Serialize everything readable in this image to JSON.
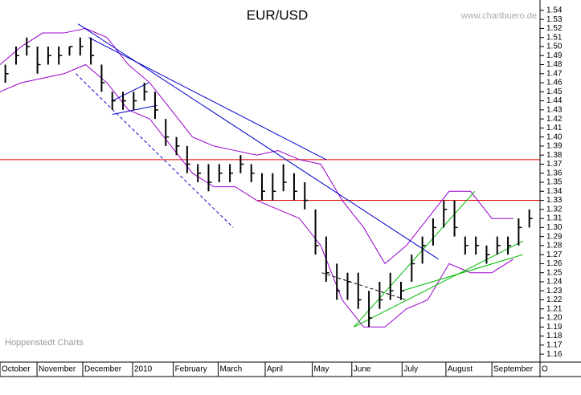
{
  "chart_data": {
    "type": "ohlc",
    "title": "EUR/USD",
    "source": "www.chartbuero.de",
    "footer": "Hoppenstedt Charts",
    "x": [
      0.5,
      1.5,
      2.5,
      3.5,
      4.5,
      5.5,
      6.5,
      7.5,
      8.5,
      9.5,
      10.5,
      11.5,
      12.5,
      13.5,
      14.5,
      15.5,
      16.5,
      17.5,
      18.5,
      19.5,
      20.5,
      21.5,
      22.5,
      23.5,
      24.5,
      25.5,
      26.5,
      27.5,
      28.5,
      29.5,
      30.5,
      31.5,
      32.5,
      33.5,
      34.5,
      35.5,
      36.5,
      37.5,
      38.5,
      39.5,
      40.5,
      41.5,
      42.5,
      43.5,
      44.5,
      45.5,
      46.5,
      47.5,
      48.5,
      49.5
    ],
    "high": [
      1.48,
      1.5,
      1.51,
      1.5,
      1.5,
      1.5,
      1.5,
      1.51,
      1.51,
      1.48,
      1.45,
      1.45,
      1.45,
      1.46,
      1.45,
      1.42,
      1.4,
      1.39,
      1.37,
      1.37,
      1.37,
      1.37,
      1.38,
      1.37,
      1.36,
      1.36,
      1.37,
      1.36,
      1.35,
      1.32,
      1.29,
      1.26,
      1.25,
      1.25,
      1.23,
      1.24,
      1.25,
      1.24,
      1.27,
      1.29,
      1.31,
      1.33,
      1.33,
      1.29,
      1.29,
      1.28,
      1.29,
      1.29,
      1.31,
      1.32
    ],
    "low": [
      1.46,
      1.48,
      1.49,
      1.47,
      1.48,
      1.48,
      1.49,
      1.49,
      1.48,
      1.45,
      1.43,
      1.43,
      1.43,
      1.44,
      1.42,
      1.39,
      1.38,
      1.36,
      1.35,
      1.34,
      1.35,
      1.35,
      1.36,
      1.35,
      1.33,
      1.33,
      1.34,
      1.33,
      1.32,
      1.27,
      1.24,
      1.22,
      1.22,
      1.21,
      1.19,
      1.21,
      1.22,
      1.22,
      1.24,
      1.26,
      1.28,
      1.3,
      1.29,
      1.27,
      1.27,
      1.26,
      1.27,
      1.27,
      1.28,
      1.3
    ],
    "close": [
      1.47,
      1.49,
      1.5,
      1.48,
      1.49,
      1.49,
      1.5,
      1.5,
      1.49,
      1.46,
      1.44,
      1.44,
      1.44,
      1.45,
      1.43,
      1.4,
      1.39,
      1.37,
      1.36,
      1.35,
      1.36,
      1.36,
      1.37,
      1.36,
      1.34,
      1.34,
      1.35,
      1.34,
      1.33,
      1.28,
      1.25,
      1.23,
      1.24,
      1.22,
      1.2,
      1.22,
      1.23,
      1.23,
      1.26,
      1.28,
      1.3,
      1.32,
      1.3,
      1.28,
      1.28,
      1.27,
      1.28,
      1.28,
      1.3,
      1.31
    ],
    "color": "#000000",
    "bands": {
      "color": "#9900cc",
      "x": [
        0,
        2,
        4,
        6,
        8,
        10,
        12,
        14,
        16,
        18,
        20,
        22,
        24,
        26,
        28,
        30,
        32,
        34,
        36,
        38,
        40,
        42,
        44,
        46,
        48
      ],
      "upper": [
        1.48,
        1.5,
        1.515,
        1.515,
        1.52,
        1.51,
        1.48,
        1.46,
        1.43,
        1.4,
        1.39,
        1.385,
        1.38,
        1.385,
        1.375,
        1.37,
        1.33,
        1.3,
        1.26,
        1.28,
        1.31,
        1.34,
        1.34,
        1.31,
        1.31
      ],
      "lower": [
        1.45,
        1.46,
        1.465,
        1.47,
        1.48,
        1.46,
        1.43,
        1.42,
        1.39,
        1.36,
        1.345,
        1.345,
        1.33,
        1.32,
        1.31,
        1.28,
        1.22,
        1.19,
        1.19,
        1.21,
        1.22,
        1.26,
        1.25,
        1.25,
        1.265
      ]
    },
    "trendlines": [
      {
        "color": "#0000cc",
        "dashed": false,
        "points": [
          [
            7.3,
            1.525
          ],
          [
            41.0,
            1.265
          ]
        ]
      },
      {
        "color": "#0000cc",
        "dashed": false,
        "points": [
          [
            8.3,
            1.51
          ],
          [
            30.5,
            1.375
          ]
        ]
      },
      {
        "color": "#0000cc",
        "dashed": false,
        "points": [
          [
            10.5,
            1.44
          ],
          [
            13.9,
            1.46
          ]
        ]
      },
      {
        "color": "#0000cc",
        "dashed": false,
        "points": [
          [
            10.5,
            1.425
          ],
          [
            14.7,
            1.435
          ]
        ]
      },
      {
        "color": "#0000cc",
        "dashed": true,
        "points": [
          [
            7.1,
            1.47
          ],
          [
            21.8,
            1.3
          ]
        ]
      },
      {
        "color": "#000000",
        "dashed": true,
        "points": [
          [
            30.1,
            1.25
          ],
          [
            38.0,
            1.22
          ]
        ]
      },
      {
        "color": "#00bb00",
        "dashed": false,
        "points": [
          [
            33.1,
            1.19
          ],
          [
            44.4,
            1.34
          ]
        ]
      },
      {
        "color": "#00bb00",
        "dashed": false,
        "points": [
          [
            33.1,
            1.19
          ],
          [
            48.9,
            1.285
          ]
        ]
      },
      {
        "color": "#00bb00",
        "dashed": false,
        "points": [
          [
            37.6,
            1.23
          ],
          [
            48.9,
            1.27
          ]
        ]
      }
    ],
    "hlines": [
      {
        "value": 1.375,
        "from": 0,
        "color": "#e00000"
      },
      {
        "value": 1.33,
        "from": 24.1,
        "color": "#e00000"
      }
    ],
    "xlim": [
      0,
      50.5
    ],
    "xticks": [
      {
        "value": 0,
        "label": "October"
      },
      {
        "value": 3.46,
        "label": "November"
      },
      {
        "value": 7.74,
        "label": "December"
      },
      {
        "value": 12.4,
        "label": "2010"
      },
      {
        "value": 16.2,
        "label": "February"
      },
      {
        "value": 20.4,
        "label": "March"
      },
      {
        "value": 24.8,
        "label": "April"
      },
      {
        "value": 29.2,
        "label": "May"
      },
      {
        "value": 32.9,
        "label": "June"
      },
      {
        "value": 37.6,
        "label": "July"
      },
      {
        "value": 41.7,
        "label": "August"
      },
      {
        "value": 46.0,
        "label": "September"
      },
      {
        "value": 50.5,
        "label": "O"
      }
    ],
    "ylim": [
      1.153,
      1.547
    ],
    "yticks": [
      1.16,
      1.17,
      1.18,
      1.19,
      {
        "value": 1.2,
        "label": "1.20"
      },
      1.21,
      1.22,
      1.23,
      1.24,
      1.25,
      1.26,
      1.27,
      1.28,
      1.29,
      {
        "value": 1.3,
        "label": "1.30"
      },
      1.31,
      1.32,
      1.33,
      1.34,
      1.35,
      1.36,
      1.37,
      1.38,
      1.39,
      {
        "value": 1.4,
        "label": "1.40"
      },
      1.41,
      1.42,
      1.43,
      1.44,
      1.45,
      1.46,
      1.47,
      1.48,
      1.49,
      {
        "value": 1.5,
        "label": "1.50"
      },
      1.51,
      1.52,
      1.53,
      1.54
    ]
  }
}
